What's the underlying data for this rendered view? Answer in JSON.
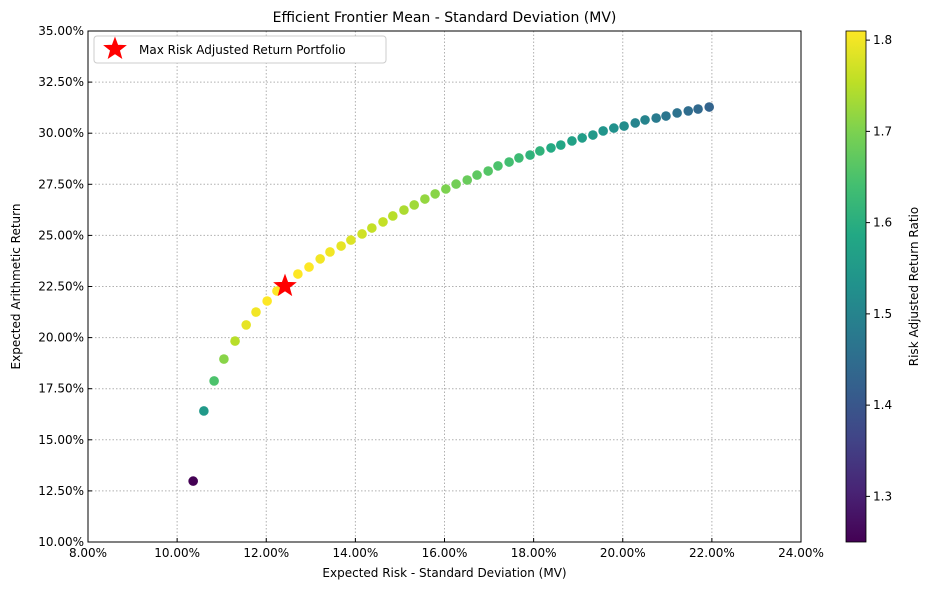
{
  "chart_data": {
    "type": "scatter",
    "title": "Efficient Frontier Mean - Standard Deviation (MV)",
    "xlabel": "Expected Risk - Standard Deviation (MV)",
    "ylabel": "Expected Arithmetic Return",
    "xlim": [
      8,
      24
    ],
    "ylim": [
      10,
      35
    ],
    "x_ticks": [
      "8.00%",
      "10.00%",
      "12.00%",
      "14.00%",
      "16.00%",
      "18.00%",
      "20.00%",
      "22.00%",
      "24.00%"
    ],
    "y_ticks": [
      "10.00%",
      "12.50%",
      "15.00%",
      "17.50%",
      "20.00%",
      "22.50%",
      "25.00%",
      "27.50%",
      "30.00%",
      "32.50%",
      "35.00%"
    ],
    "grid": true,
    "colormap": "viridis",
    "colorbar": {
      "label": "Risk Adjusted Return Ratio",
      "range": [
        1.25,
        1.81
      ],
      "ticks": [
        "1.3",
        "1.4",
        "1.5",
        "1.6",
        "1.7",
        "1.8"
      ]
    },
    "points": [
      [
        10.36,
        12.98,
        1.25
      ],
      [
        10.6,
        16.41,
        1.55
      ],
      [
        10.83,
        17.88,
        1.65
      ],
      [
        11.05,
        18.95,
        1.71
      ],
      [
        11.3,
        19.83,
        1.75
      ],
      [
        11.55,
        20.62,
        1.79
      ],
      [
        11.77,
        21.25,
        1.8
      ],
      [
        12.02,
        21.79,
        1.81
      ],
      [
        12.24,
        22.28,
        1.81
      ],
      [
        12.71,
        23.11,
        1.81
      ],
      [
        12.96,
        23.45,
        1.81
      ],
      [
        13.21,
        23.85,
        1.8
      ],
      [
        13.43,
        24.19,
        1.8
      ],
      [
        13.68,
        24.48,
        1.79
      ],
      [
        13.9,
        24.77,
        1.78
      ],
      [
        14.15,
        25.07,
        1.77
      ],
      [
        14.37,
        25.36,
        1.76
      ],
      [
        14.62,
        25.66,
        1.76
      ],
      [
        14.84,
        25.95,
        1.75
      ],
      [
        15.09,
        26.24,
        1.74
      ],
      [
        15.32,
        26.49,
        1.73
      ],
      [
        15.56,
        26.78,
        1.72
      ],
      [
        15.79,
        27.03,
        1.71
      ],
      [
        16.03,
        27.27,
        1.7
      ],
      [
        16.26,
        27.51,
        1.69
      ],
      [
        16.51,
        27.71,
        1.68
      ],
      [
        16.73,
        27.95,
        1.67
      ],
      [
        16.98,
        28.15,
        1.66
      ],
      [
        17.2,
        28.4,
        1.65
      ],
      [
        17.45,
        28.59,
        1.64
      ],
      [
        17.67,
        28.79,
        1.63
      ],
      [
        17.92,
        28.93,
        1.61
      ],
      [
        18.14,
        29.13,
        1.61
      ],
      [
        18.39,
        29.28,
        1.59
      ],
      [
        18.61,
        29.42,
        1.58
      ],
      [
        18.86,
        29.62,
        1.57
      ],
      [
        19.09,
        29.77,
        1.56
      ],
      [
        19.33,
        29.91,
        1.55
      ],
      [
        19.56,
        30.11,
        1.54
      ],
      [
        19.8,
        30.25,
        1.53
      ],
      [
        20.03,
        30.35,
        1.52
      ],
      [
        20.28,
        30.5,
        1.5
      ],
      [
        20.5,
        30.65,
        1.5
      ],
      [
        20.75,
        30.74,
        1.48
      ],
      [
        20.97,
        30.84,
        1.47
      ],
      [
        21.22,
        30.99,
        1.46
      ],
      [
        21.47,
        31.09,
        1.45
      ],
      [
        21.69,
        31.18,
        1.44
      ],
      [
        21.94,
        31.28,
        1.43
      ]
    ],
    "point_fields": [
      "risk_pct",
      "return_pct",
      "ratio"
    ],
    "highlight": {
      "label": "Max Risk Adjusted Return Portfolio",
      "x": 12.42,
      "y": 22.52,
      "marker": "star",
      "color": "#ff0000"
    },
    "legend_position": "top-left"
  }
}
